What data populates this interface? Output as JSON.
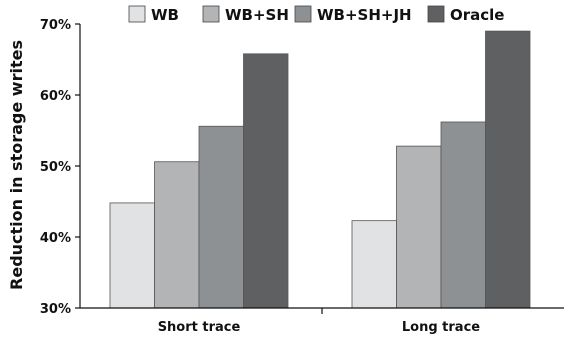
{
  "chart_data": {
    "type": "bar",
    "title": "",
    "xlabel": "",
    "ylabel": "Reduction in storage writes",
    "categories": [
      "Short trace",
      "Long trace"
    ],
    "series": [
      {
        "name": "WB",
        "values": [
          44.8,
          42.3
        ],
        "color": "#e1e2e4"
      },
      {
        "name": "WB+SH",
        "values": [
          50.6,
          52.8
        ],
        "color": "#b3b4b6"
      },
      {
        "name": "WB+SH+JH",
        "values": [
          55.6,
          56.2
        ],
        "color": "#8e9194"
      },
      {
        "name": "Oracle",
        "values": [
          65.8,
          69.0
        ],
        "color": "#5f6062"
      }
    ],
    "ylim": [
      30,
      70
    ],
    "yticks": [
      "30%",
      "40%",
      "50%",
      "60%",
      "70%"
    ],
    "ytick_values": [
      30,
      40,
      50,
      60,
      70
    ],
    "grid": false,
    "legend": "top"
  }
}
